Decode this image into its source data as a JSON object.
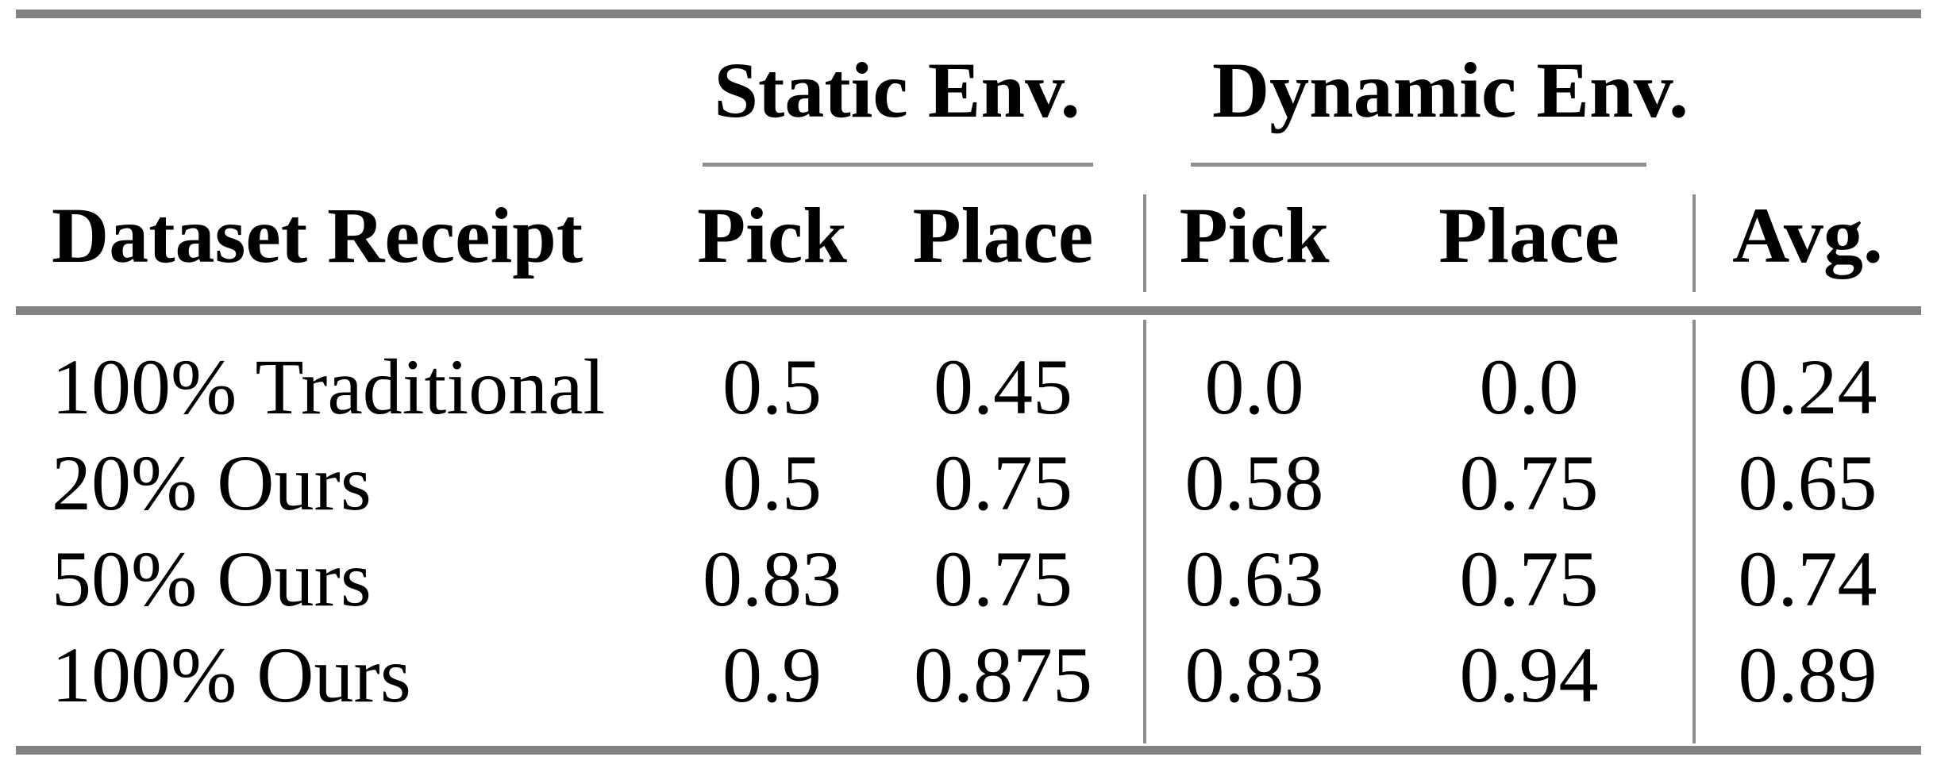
{
  "table": {
    "group_headers": [
      {
        "label": "Static Env."
      },
      {
        "label": "Dynamic Env."
      }
    ],
    "column_headers": {
      "row_label": "Dataset Receipt",
      "static_pick": "Pick",
      "static_place": "Place",
      "dynamic_pick": "Pick",
      "dynamic_place": "Place",
      "avg": "Avg."
    },
    "rows": [
      {
        "label": "100% Traditional",
        "values": [
          "0.5",
          "0.45",
          "0.0",
          "0.0",
          "0.24"
        ]
      },
      {
        "label": "20% Ours",
        "values": [
          "0.5",
          "0.75",
          "0.58",
          "0.75",
          "0.65"
        ]
      },
      {
        "label": "50% Ours",
        "values": [
          "0.83",
          "0.75",
          "0.63",
          "0.75",
          "0.74"
        ]
      },
      {
        "label": "100% Ours",
        "values": [
          "0.9",
          "0.875",
          "0.83",
          "0.94",
          "0.89"
        ]
      }
    ],
    "colors": {
      "heavy_rule": "#828282",
      "light_rule": "#8f8f8f",
      "text": "#000000",
      "background": "#ffffff"
    }
  }
}
